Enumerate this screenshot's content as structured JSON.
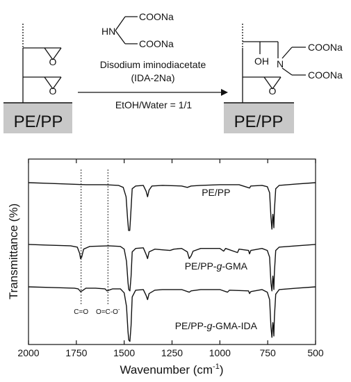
{
  "scheme": {
    "reagent": {
      "nh": "HN",
      "coona_1": "COONa",
      "coona_2": "COONa",
      "name": "Disodium iminodiacetate",
      "abbrev": "(IDA-2Na)"
    },
    "condition": "EtOH/Water = 1/1",
    "substrate_left": "PE/PP",
    "substrate_right": "PE/PP",
    "epoxide_o_1": "O",
    "epoxide_o_2": "O",
    "product": {
      "oh": "OH",
      "n": "N",
      "coona_1": "COONa",
      "coona_2": "COONa",
      "epoxide_o": "O"
    }
  },
  "colors": {
    "line": "#111111",
    "substrate_fill": "#c8c8c8"
  },
  "chart_data": {
    "type": "line",
    "title": "",
    "xlabel": "Wavenumber (cm",
    "xlabel_sup": "-1",
    "xlabel_close": ")",
    "ylabel": "Transmittance (%)",
    "xlim": [
      2000,
      500
    ],
    "x_reversed": true,
    "xticks": [
      2000,
      1750,
      1500,
      1250,
      1000,
      750,
      500
    ],
    "yticks_shown": false,
    "grid": false,
    "reference_lines": [
      {
        "x": 1725,
        "label": "C=O"
      },
      {
        "x": 1585,
        "label": "O=C-O",
        "label_sup": "-"
      }
    ],
    "series": [
      {
        "name": "PE/PP",
        "label": "PE/PP",
        "label_xy": [
          1020,
          20
        ],
        "points": [
          [
            2000,
            1
          ],
          [
            1900,
            2
          ],
          [
            1800,
            3
          ],
          [
            1700,
            4
          ],
          [
            1600,
            4
          ],
          [
            1530,
            5
          ],
          [
            1505,
            8
          ],
          [
            1490,
            22
          ],
          [
            1482,
            55
          ],
          [
            1477,
            72
          ],
          [
            1471,
            72
          ],
          [
            1466,
            50
          ],
          [
            1458,
            10
          ],
          [
            1440,
            6
          ],
          [
            1400,
            5
          ],
          [
            1385,
            14
          ],
          [
            1378,
            22
          ],
          [
            1370,
            12
          ],
          [
            1355,
            6
          ],
          [
            1300,
            5
          ],
          [
            1200,
            6
          ],
          [
            1170,
            8
          ],
          [
            1150,
            6
          ],
          [
            1100,
            5
          ],
          [
            1000,
            4
          ],
          [
            900,
            4
          ],
          [
            845,
            9
          ],
          [
            838,
            6
          ],
          [
            780,
            5
          ],
          [
            752,
            7
          ],
          [
            740,
            16
          ],
          [
            733,
            52
          ],
          [
            728,
            70
          ],
          [
            723,
            48
          ],
          [
            720,
            56
          ],
          [
            718,
            68
          ],
          [
            715,
            42
          ],
          [
            708,
            10
          ],
          [
            690,
            5
          ],
          [
            600,
            3
          ],
          [
            500,
            1
          ]
        ]
      },
      {
        "name": "PE/PP-g-GMA",
        "label": "PE/PP-g-GMA",
        "label_xy": [
          1020,
          39
        ],
        "points": [
          [
            2000,
            3
          ],
          [
            1900,
            4
          ],
          [
            1780,
            5
          ],
          [
            1745,
            7
          ],
          [
            1733,
            16
          ],
          [
            1728,
            24
          ],
          [
            1722,
            22
          ],
          [
            1712,
            10
          ],
          [
            1680,
            6
          ],
          [
            1580,
            5
          ],
          [
            1520,
            6
          ],
          [
            1500,
            10
          ],
          [
            1488,
            28
          ],
          [
            1480,
            60
          ],
          [
            1476,
            70
          ],
          [
            1470,
            72
          ],
          [
            1464,
            50
          ],
          [
            1458,
            14
          ],
          [
            1440,
            9
          ],
          [
            1400,
            8
          ],
          [
            1385,
            18
          ],
          [
            1378,
            24
          ],
          [
            1370,
            14
          ],
          [
            1340,
            10
          ],
          [
            1300,
            11
          ],
          [
            1260,
            12
          ],
          [
            1240,
            10
          ],
          [
            1200,
            9
          ],
          [
            1170,
            14
          ],
          [
            1160,
            24
          ],
          [
            1150,
            20
          ],
          [
            1140,
            13
          ],
          [
            1100,
            9
          ],
          [
            1000,
            9
          ],
          [
            980,
            13
          ],
          [
            970,
            9
          ],
          [
            908,
            15
          ],
          [
            900,
            10
          ],
          [
            850,
            12
          ],
          [
            845,
            17
          ],
          [
            838,
            12
          ],
          [
            780,
            9
          ],
          [
            752,
            12
          ],
          [
            740,
            22
          ],
          [
            733,
            60
          ],
          [
            728,
            72
          ],
          [
            723,
            50
          ],
          [
            720,
            58
          ],
          [
            718,
            70
          ],
          [
            715,
            44
          ],
          [
            708,
            12
          ],
          [
            690,
            7
          ],
          [
            600,
            5
          ],
          [
            500,
            3
          ]
        ]
      },
      {
        "name": "PE/PP-g-GMA-IDA",
        "label": "PE/PP-g-GMA-IDA",
        "label_xy": [
          1020,
          62
        ],
        "points": [
          [
            2000,
            1
          ],
          [
            1880,
            2
          ],
          [
            1760,
            3
          ],
          [
            1740,
            4
          ],
          [
            1728,
            8
          ],
          [
            1720,
            7
          ],
          [
            1700,
            3
          ],
          [
            1650,
            3
          ],
          [
            1600,
            4
          ],
          [
            1590,
            7
          ],
          [
            1580,
            6
          ],
          [
            1560,
            4
          ],
          [
            1520,
            4
          ],
          [
            1500,
            10
          ],
          [
            1488,
            30
          ],
          [
            1480,
            68
          ],
          [
            1476,
            80
          ],
          [
            1470,
            82
          ],
          [
            1464,
            58
          ],
          [
            1458,
            16
          ],
          [
            1440,
            6
          ],
          [
            1400,
            5
          ],
          [
            1385,
            14
          ],
          [
            1378,
            20
          ],
          [
            1370,
            11
          ],
          [
            1340,
            6
          ],
          [
            1300,
            5
          ],
          [
            1200,
            5
          ],
          [
            1160,
            9
          ],
          [
            1150,
            7
          ],
          [
            1100,
            5
          ],
          [
            1000,
            5
          ],
          [
            960,
            9
          ],
          [
            950,
            6
          ],
          [
            850,
            7
          ],
          [
            845,
            11
          ],
          [
            838,
            8
          ],
          [
            780,
            5
          ],
          [
            752,
            9
          ],
          [
            740,
            20
          ],
          [
            733,
            60
          ],
          [
            728,
            76
          ],
          [
            723,
            54
          ],
          [
            720,
            62
          ],
          [
            718,
            74
          ],
          [
            715,
            46
          ],
          [
            708,
            12
          ],
          [
            690,
            5
          ],
          [
            600,
            3
          ],
          [
            500,
            1
          ]
        ]
      }
    ],
    "label_sub": {
      "pe_pp": "PE/PP-",
      "g": "g",
      "gma": "-GMA",
      "ida": "-GMA-IDA"
    }
  }
}
